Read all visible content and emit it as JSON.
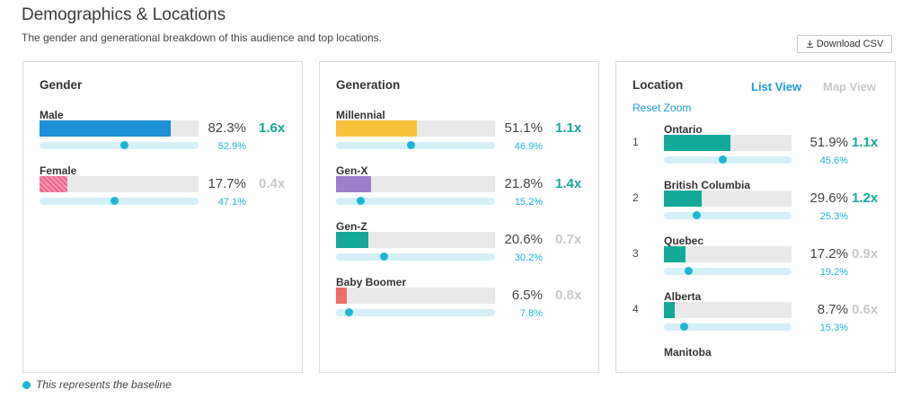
{
  "header": {
    "title": "Demographics & Locations",
    "subtitle": "The gender and generational breakdown of this audience and top locations.",
    "download_label": "Download CSV"
  },
  "colors": {
    "baseline": "#1bb6d6",
    "index_high": "#15a89a",
    "index_low": "#c8c8c8",
    "link": "#1c9bd6"
  },
  "gender": {
    "title": "Gender",
    "items": [
      {
        "label": "Male",
        "pct": "82.3%",
        "pct_value": 82.3,
        "base_pct": "52.9%",
        "base_value": 52.9,
        "index": "1.6x",
        "index_level": "hi",
        "color": "#1c8fd6"
      },
      {
        "label": "Female",
        "pct": "17.7%",
        "pct_value": 17.7,
        "base_pct": "47.1%",
        "base_value": 47.1,
        "index": "0.4x",
        "index_level": "lo",
        "color": "#f0628a"
      }
    ]
  },
  "generation": {
    "title": "Generation",
    "items": [
      {
        "label": "Millennial",
        "pct": "51.1%",
        "pct_value": 51.1,
        "base_pct": "46.9%",
        "base_value": 46.9,
        "index": "1.1x",
        "index_level": "hi",
        "color": "#f7c23a"
      },
      {
        "label": "Gen-X",
        "pct": "21.8%",
        "pct_value": 21.8,
        "base_pct": "15.2%",
        "base_value": 15.2,
        "index": "1.4x",
        "index_level": "hi",
        "color": "#9b7fcb"
      },
      {
        "label": "Gen-Z",
        "pct": "20.6%",
        "pct_value": 20.6,
        "base_pct": "30.2%",
        "base_value": 30.2,
        "index": "0.7x",
        "index_level": "lo",
        "color": "#13a99a"
      },
      {
        "label": "Baby Boomer",
        "pct": "6.5%",
        "pct_value": 6.5,
        "base_pct": "7.8%",
        "base_value": 7.8,
        "index": "0.8x",
        "index_level": "lo",
        "color": "#f26b6b"
      }
    ]
  },
  "location": {
    "title": "Location",
    "list_view_label": "List View",
    "map_view_label": "Map View",
    "reset_zoom_label": "Reset Zoom",
    "items": [
      {
        "rank": "1",
        "label": "Ontario",
        "pct": "51.9%",
        "pct_value": 51.9,
        "base_pct": "45.6%",
        "base_value": 45.6,
        "index": "1.1x",
        "index_level": "hi",
        "color": "#13a99a"
      },
      {
        "rank": "2",
        "label": "British Columbia",
        "pct": "29.6%",
        "pct_value": 29.6,
        "base_pct": "25.3%",
        "base_value": 25.3,
        "index": "1.2x",
        "index_level": "hi",
        "color": "#13a99a"
      },
      {
        "rank": "3",
        "label": "Quebec",
        "pct": "17.2%",
        "pct_value": 17.2,
        "base_pct": "19.2%",
        "base_value": 19.2,
        "index": "0.9x",
        "index_level": "lo",
        "color": "#13a99a"
      },
      {
        "rank": "4",
        "label": "Alberta",
        "pct": "8.7%",
        "pct_value": 8.7,
        "base_pct": "15.3%",
        "base_value": 15.3,
        "index": "0.6x",
        "index_level": "lo",
        "color": "#13a99a"
      },
      {
        "rank": "",
        "label": "Manitoba",
        "pct": "",
        "pct_value": null,
        "base_pct": "",
        "base_value": null,
        "index": "",
        "index_level": "lo",
        "color": "#13a99a"
      }
    ]
  },
  "legend": {
    "text": "This represents the baseline"
  }
}
